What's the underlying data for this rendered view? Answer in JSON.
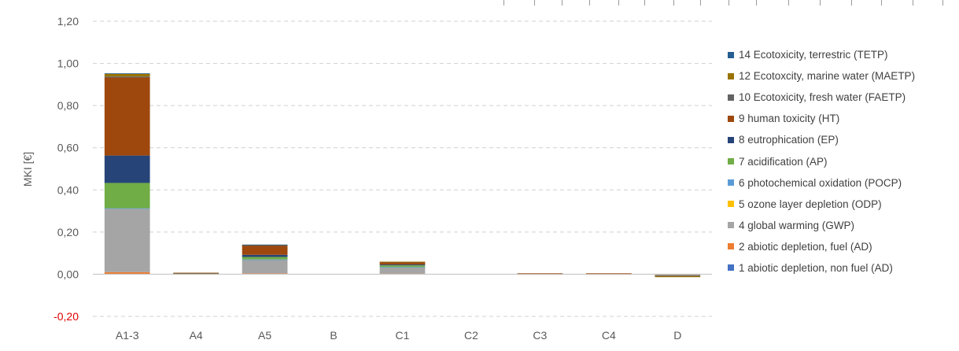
{
  "chart_data": {
    "type": "bar",
    "stacked": true,
    "title": "",
    "xlabel": "",
    "ylabel": "MKI [€]",
    "ylim": [
      -0.2,
      1.2
    ],
    "yticks": [
      -0.2,
      0.0,
      0.2,
      0.4,
      0.6,
      0.8,
      1.0,
      1.2
    ],
    "ytick_labels": [
      "-0,20",
      "0,00",
      "0,20",
      "0,40",
      "0,60",
      "0,80",
      "1,00",
      "1,20"
    ],
    "negative_tick_color": "#e00000",
    "grid": "horizontal dashed",
    "legend_position": "right",
    "categories": [
      "A1-3",
      "A4",
      "A5",
      "B",
      "C1",
      "C2",
      "C3",
      "C4",
      "D"
    ],
    "series": [
      {
        "name": "1 abiotic depletion, non fuel (AD)",
        "color": "#4472C4",
        "values": [
          0.0,
          0.0,
          0.0,
          0.0,
          0.0,
          0.0,
          0.0,
          0.0,
          0.0
        ]
      },
      {
        "name": "2 abiotic depletion, fuel (AD)",
        "color": "#ED7D31",
        "values": [
          0.01,
          0.001,
          0.004,
          0.0,
          0.003,
          0.0,
          0.0005,
          0.0005,
          -0.002
        ]
      },
      {
        "name": "4 global warming (GWP)",
        "color": "#A5A5A5",
        "values": [
          0.3,
          0.003,
          0.063,
          0.0,
          0.03,
          0.0,
          0.002,
          0.002,
          -0.004
        ]
      },
      {
        "name": "5 ozone layer depletion (ODP)",
        "color": "#FFC000",
        "values": [
          0.0,
          0.0,
          0.0,
          0.0,
          0.0,
          0.0,
          0.0,
          0.0,
          0.0
        ]
      },
      {
        "name": "6 photochemical oxidation (POCP)",
        "color": "#5B9BD5",
        "values": [
          0.003,
          0.0,
          0.003,
          0.0,
          0.001,
          0.0,
          0.0,
          0.0,
          0.0
        ]
      },
      {
        "name": "7 acidification (AP)",
        "color": "#70AD47",
        "values": [
          0.12,
          0.001,
          0.012,
          0.0,
          0.008,
          0.0,
          0.0005,
          0.0005,
          -0.001
        ]
      },
      {
        "name": "8 eutrophication (EP)",
        "color": "#264478",
        "values": [
          0.13,
          0.001,
          0.01,
          0.0,
          0.004,
          0.0,
          0.0005,
          0.0005,
          -0.001
        ]
      },
      {
        "name": "9 human toxicity (HT)",
        "color": "#9E480E",
        "values": [
          0.37,
          0.001,
          0.045,
          0.0,
          0.012,
          0.0,
          0.001,
          0.001,
          -0.003
        ]
      },
      {
        "name": "10 Ecotoxicity, fresh water (FAETP)",
        "color": "#636363",
        "values": [
          0.005,
          0.0,
          0.001,
          0.0,
          0.0005,
          0.0,
          0.0,
          0.0,
          0.0
        ]
      },
      {
        "name": "12 Ecotoxcity, marine water (MAETP)",
        "color": "#997300",
        "values": [
          0.012,
          0.0,
          0.002,
          0.0,
          0.001,
          0.0,
          0.0,
          0.0,
          -0.0005
        ]
      },
      {
        "name": "14 Ecotoxicity, terrestric (TETP)",
        "color": "#255E91",
        "values": [
          0.003,
          0.0,
          0.0005,
          0.0,
          0.0,
          0.0,
          0.0,
          0.0,
          0.0
        ]
      }
    ]
  }
}
